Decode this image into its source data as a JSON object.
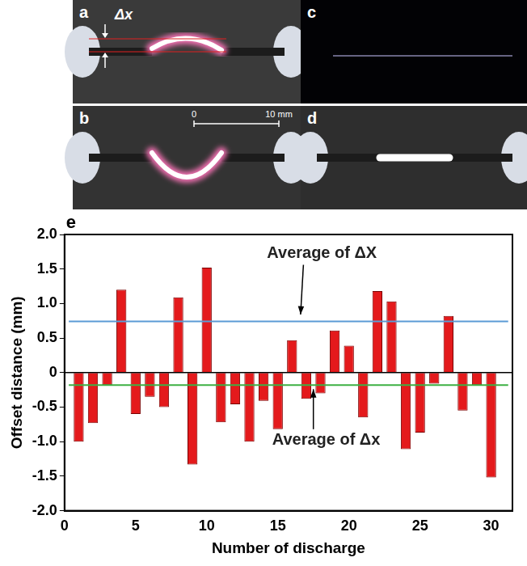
{
  "chart_data": {
    "type": "bar",
    "panel_label": "e",
    "x_label": "Number of discharge",
    "y_label": "Offset distance (mm)",
    "x": [
      1,
      2,
      3,
      4,
      5,
      6,
      7,
      8,
      9,
      10,
      11,
      12,
      13,
      14,
      15,
      16,
      17,
      18,
      19,
      20,
      21,
      22,
      23,
      24,
      25,
      26,
      27,
      28,
      29,
      30
    ],
    "values": [
      -1.0,
      -0.73,
      -0.18,
      1.2,
      -0.6,
      -0.35,
      -0.5,
      1.09,
      -1.33,
      1.52,
      -0.72,
      -0.46,
      -1.0,
      -0.41,
      -0.82,
      0.47,
      -0.38,
      -0.3,
      0.61,
      0.39,
      -0.65,
      1.18,
      1.03,
      -1.11,
      -0.87,
      -0.16,
      0.82,
      -0.55,
      -0.18,
      -1.52
    ],
    "color": "#e41a1c",
    "xlim": [
      0,
      31.5
    ],
    "xticks": [
      0,
      5,
      10,
      15,
      20,
      25,
      30
    ],
    "ylim": [
      -2,
      2
    ],
    "yticks": [
      {
        "value": -2,
        "label": "-2.0"
      },
      -1.5,
      {
        "value": -1,
        "label": "-1.0"
      },
      -0.5,
      0,
      0.5,
      {
        "value": 1,
        "label": "1.0"
      },
      1.5,
      {
        "value": 2,
        "label": "2.0"
      }
    ],
    "grid": false,
    "reference_lines": [
      {
        "label": "Average of ΔX",
        "value": 0.74,
        "color": "#5b9bd5"
      },
      {
        "label": "Average of Δx",
        "value": -0.18,
        "color": "#3cb043"
      }
    ]
  },
  "photo_panels": {
    "labels": [
      "a",
      "b",
      "c",
      "d"
    ],
    "offset_label": "Δx",
    "scale_bar": [
      "0",
      "10 mm"
    ]
  }
}
